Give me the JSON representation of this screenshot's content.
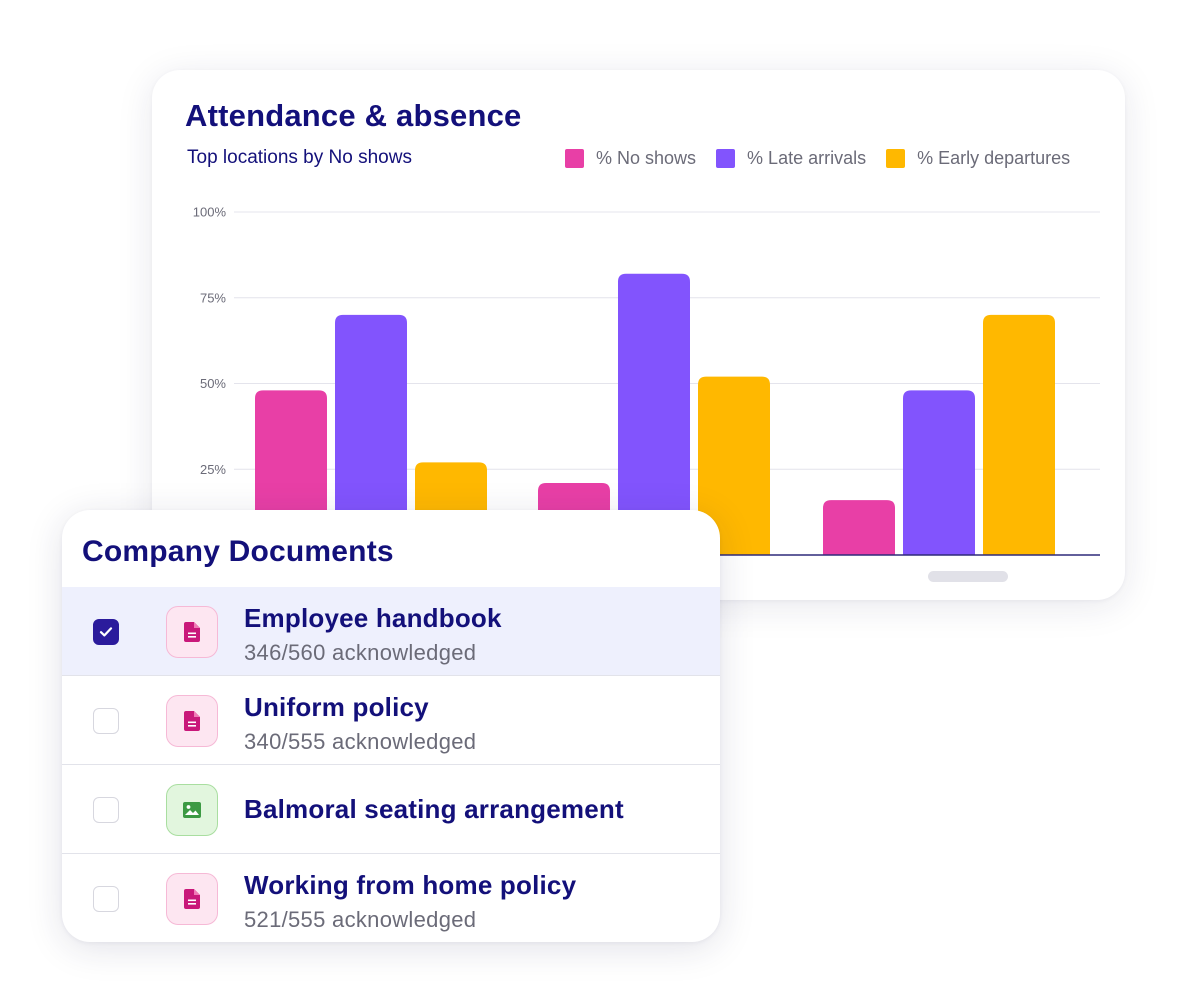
{
  "attendance": {
    "title": "Attendance & absence",
    "subtitle": "Top locations by No shows"
  },
  "chart_data": {
    "type": "bar",
    "categories": [
      "",
      "",
      ""
    ],
    "series": [
      {
        "name": "% No shows",
        "color": "#e83fa6",
        "values": [
          48,
          21,
          16
        ]
      },
      {
        "name": "% Late arrivals",
        "color": "#8254fd",
        "values": [
          70,
          82,
          48
        ]
      },
      {
        "name": "% Early departures",
        "color": "#ffb800",
        "values": [
          27,
          52,
          70
        ]
      }
    ],
    "y_ticks": [
      "100%",
      "75%",
      "50%",
      "25%"
    ],
    "ylim": [
      0,
      100
    ],
    "grid": true,
    "legend_position": "top-right"
  },
  "documents": {
    "title": "Company Documents",
    "items": [
      {
        "name": "Employee handbook",
        "status": "346/560 acknowledged",
        "checked": true,
        "icon": "document-icon"
      },
      {
        "name": "Uniform policy",
        "status": "340/555 acknowledged",
        "checked": false,
        "icon": "document-icon"
      },
      {
        "name": "Balmoral seating arrangement",
        "status": "",
        "checked": false,
        "icon": "image-icon"
      },
      {
        "name": "Working from home policy",
        "status": "521/555 acknowledged",
        "checked": false,
        "icon": "document-icon"
      }
    ]
  },
  "colors": {
    "brand_navy": "#13107a",
    "checkbox_checked": "#2b1b9c",
    "selected_row_bg": "#eef0fd"
  }
}
